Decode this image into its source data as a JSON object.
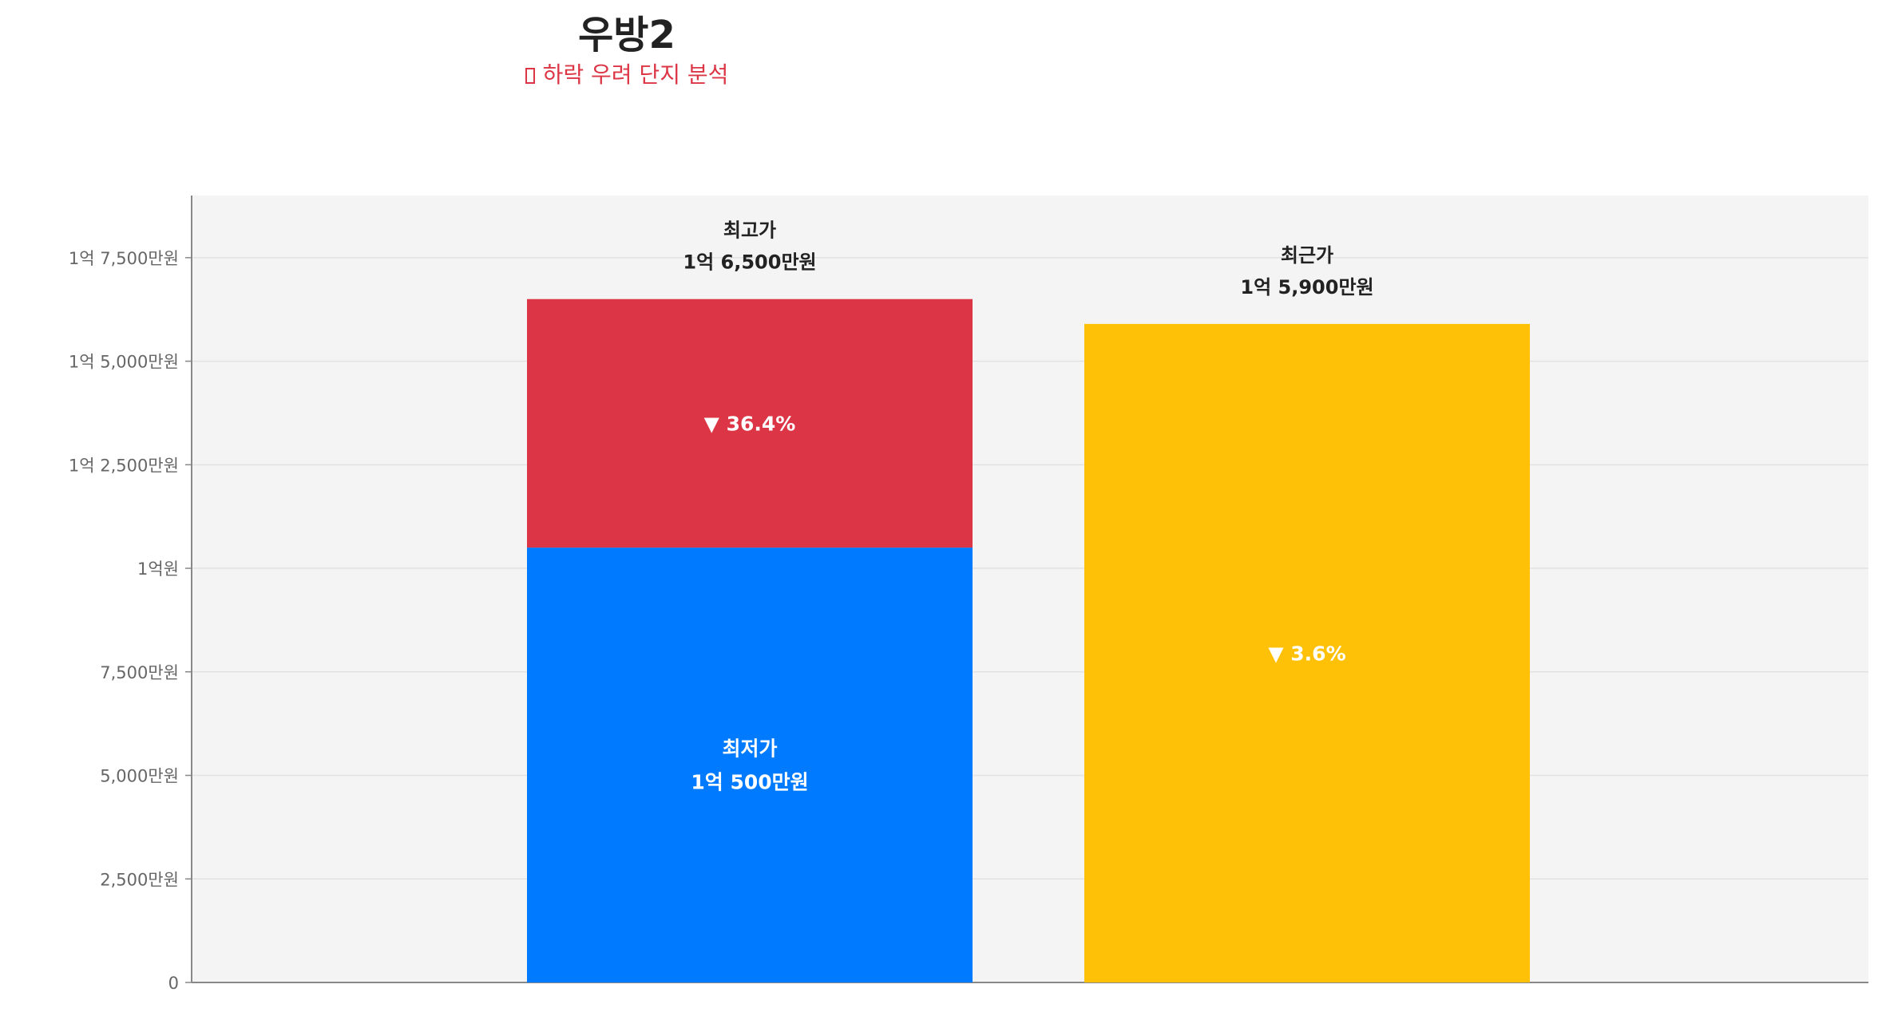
{
  "header": {
    "title": "우방2",
    "subtitle": "하락 우려 단지 분석"
  },
  "colors": {
    "max": "#dc3545",
    "min": "#007bff",
    "recent": "#ffc107",
    "plot_bg": "#f4f4f4",
    "subtitle": "#dc3545"
  },
  "chart_data": {
    "type": "bar",
    "stacked": true,
    "ylim": [
      0,
      190000000
    ],
    "yticks": [
      {
        "value": 0,
        "label": "0"
      },
      {
        "value": 25000000,
        "label": "2,500만원"
      },
      {
        "value": 50000000,
        "label": "5,000만원"
      },
      {
        "value": 75000000,
        "label": "7,500만원"
      },
      {
        "value": 100000000,
        "label": "1억원"
      },
      {
        "value": 125000000,
        "label": "1억 2,500만원"
      },
      {
        "value": 150000000,
        "label": "1억 5,000만원"
      },
      {
        "value": 175000000,
        "label": "1억 7,500만원"
      }
    ],
    "grid": true,
    "bars": [
      {
        "id": "high-low",
        "segments": [
          {
            "key": "min",
            "value": 105000000,
            "label_lines": [
              "최저가",
              "1억 500만원"
            ]
          },
          {
            "key": "max",
            "value": 165000000,
            "label_lines": [
              "▼ 36.4%"
            ]
          }
        ],
        "top_label_lines": [
          "최고가",
          "1억 6,500만원"
        ]
      },
      {
        "id": "recent",
        "segments": [
          {
            "key": "recent",
            "value": 159000000,
            "label_lines": [
              "▼ 3.6%"
            ]
          }
        ],
        "top_label_lines": [
          "최근가",
          "1억 5,900만원"
        ]
      }
    ]
  }
}
